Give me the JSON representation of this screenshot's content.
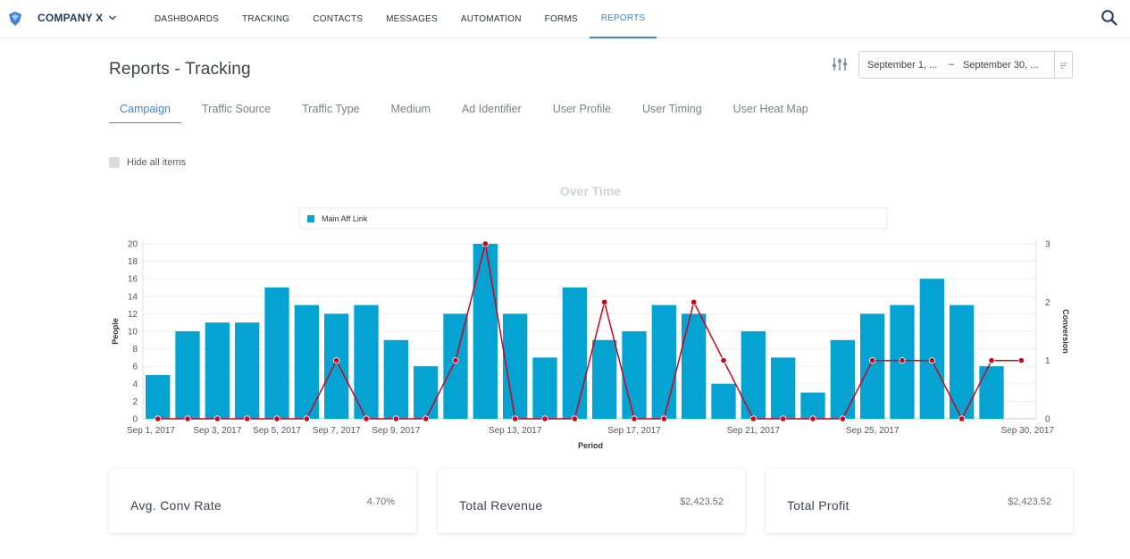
{
  "nav": {
    "company": "COMPANY X",
    "links": [
      {
        "label": "DASHBOARDS"
      },
      {
        "label": "TRACKING"
      },
      {
        "label": "CONTACTS"
      },
      {
        "label": "MESSAGES"
      },
      {
        "label": "AUTOMATION"
      },
      {
        "label": "FORMS"
      },
      {
        "label": "REPORTS",
        "active": true
      }
    ],
    "accent_color": "#3f84d6"
  },
  "header": {
    "title": "Reports - Tracking",
    "date_start": "September 1, ...",
    "date_separator": "–",
    "date_end": "September 30, ..."
  },
  "tabs": [
    {
      "label": "Campaign",
      "active": true
    },
    {
      "label": "Traffic Source"
    },
    {
      "label": "Traffic Type"
    },
    {
      "label": "Medium"
    },
    {
      "label": "Ad Identifier"
    },
    {
      "label": "User Profile"
    },
    {
      "label": "User Timing"
    },
    {
      "label": "User Heat Map"
    }
  ],
  "hide_all_label": "Hide all items",
  "chart_data": {
    "type": "bar",
    "title": "Over Time",
    "xlabel": "Period",
    "ylabel": "People",
    "y2label": "Conversion",
    "ylim": [
      0,
      20
    ],
    "y2lim": [
      0,
      3
    ],
    "grid": true,
    "legend_placement": "top",
    "bar_color": "#04a3d2",
    "line_color": "#d0021b",
    "x_tick_labels": [
      "Sep 1, 2017",
      "Sep 3, 2017",
      "Sep 5, 2017",
      "Sep 7, 2017",
      "Sep 9, 2017",
      "Sep 13, 2017",
      "Sep 17, 2017",
      "Sep 21, 2017",
      "Sep 25, 2017",
      "Sep 30, 2017"
    ],
    "y_ticks": [
      0,
      2,
      4,
      6,
      8,
      10,
      12,
      14,
      16,
      18,
      20
    ],
    "y2_ticks": [
      0,
      1,
      2,
      3
    ],
    "categories": [
      "Sep 1",
      "Sep 2",
      "Sep 3",
      "Sep 4",
      "Sep 5",
      "Sep 6",
      "Sep 7",
      "Sep 8",
      "Sep 9",
      "Sep 10",
      "Sep 11",
      "Sep 12",
      "Sep 13",
      "Sep 14",
      "Sep 15",
      "Sep 16",
      "Sep 17",
      "Sep 18",
      "Sep 19",
      "Sep 20",
      "Sep 21",
      "Sep 22",
      "Sep 23",
      "Sep 24",
      "Sep 25",
      "Sep 26",
      "Sep 27",
      "Sep 28",
      "Sep 29",
      "Sep 30"
    ],
    "series": [
      {
        "name": "Main Aff Link",
        "kind": "bar",
        "axis": "left",
        "values": [
          5,
          10,
          11,
          11,
          15,
          13,
          12,
          13,
          9,
          6,
          12,
          20,
          12,
          7,
          15,
          9,
          10,
          13,
          12,
          4,
          10,
          7,
          3,
          9,
          12,
          13,
          16,
          13,
          6,
          0
        ]
      },
      {
        "kind": "line",
        "axis": "right",
        "values": [
          0,
          0,
          0,
          0,
          0,
          0,
          1,
          0,
          0,
          0,
          1,
          3,
          0,
          0,
          0,
          2,
          0,
          0,
          2,
          1,
          0,
          0,
          0,
          0,
          1,
          1,
          1,
          0,
          1,
          1
        ]
      }
    ]
  },
  "cards": [
    {
      "label": "Avg. Conv Rate",
      "value": "4.70%"
    },
    {
      "label": "Total Revenue",
      "value": "$2,423.52"
    },
    {
      "label": "Total Profit",
      "value": "$2,423.52"
    }
  ]
}
